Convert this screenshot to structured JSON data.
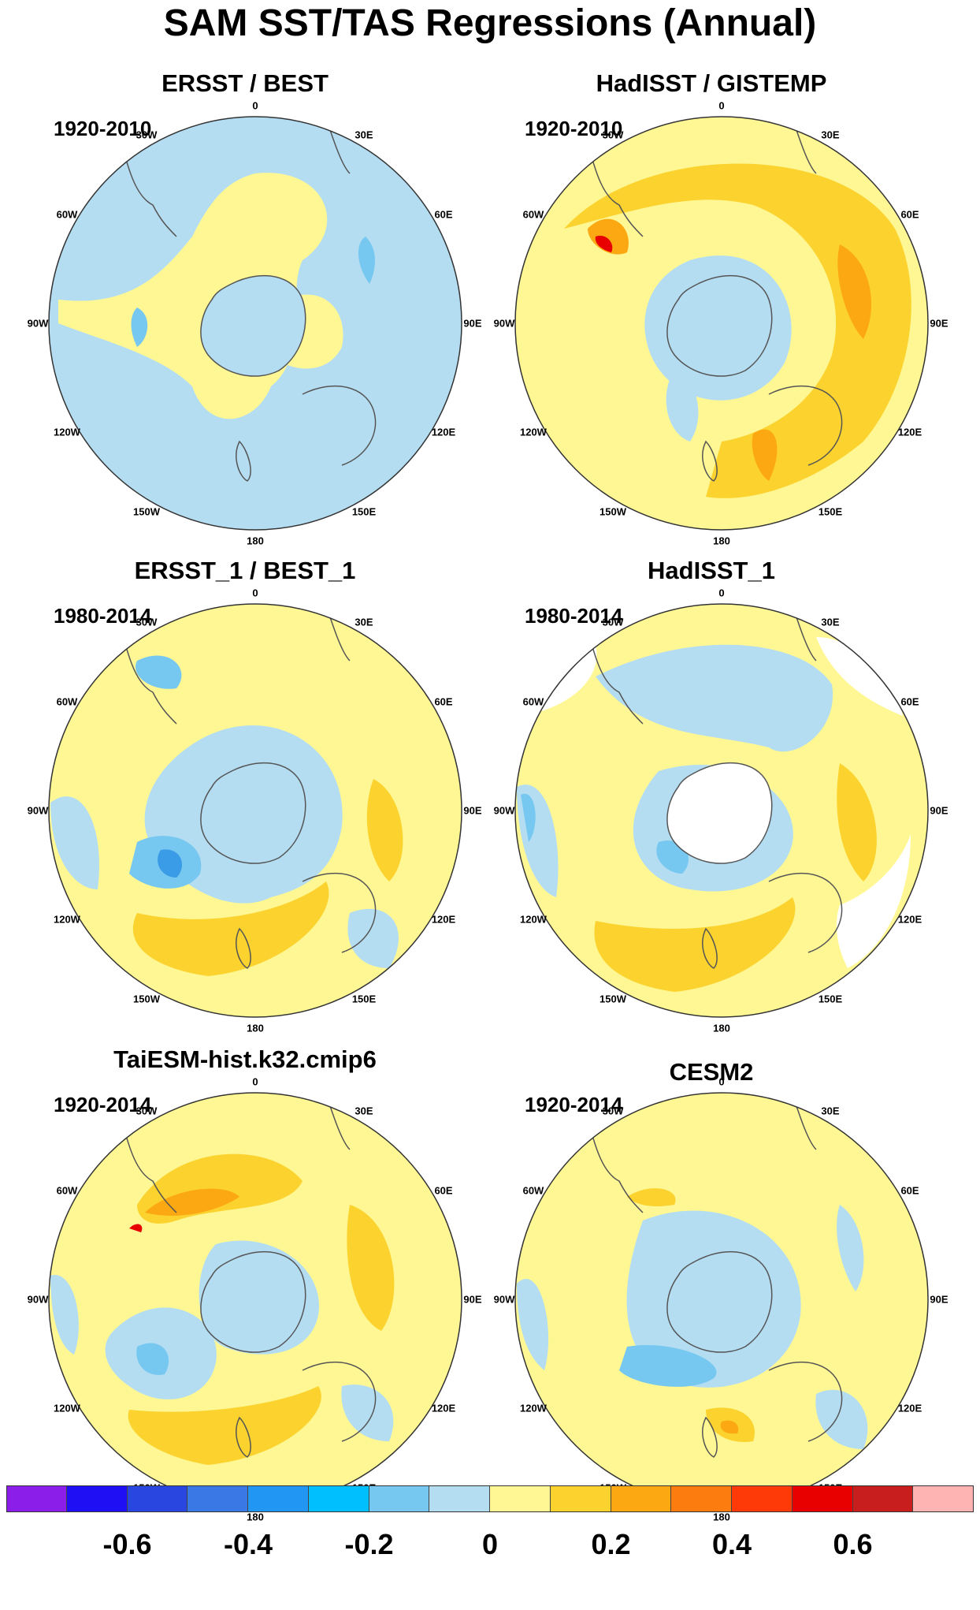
{
  "title": "SAM SST/TAS Regressions (Annual)",
  "panels": [
    {
      "name": "ERSST / BEST",
      "period": "1920-2010",
      "scheme": "A"
    },
    {
      "name": "HadISST / GISTEMP",
      "period": "1920-2010",
      "scheme": "B"
    },
    {
      "name": "ERSST_1 / BEST_1",
      "period": "1980-2014",
      "scheme": "C"
    },
    {
      "name": "HadISST_1",
      "period": "1980-2014",
      "scheme": "D"
    },
    {
      "name": "TaiESM-hist.k32.cmip6",
      "period": "1920-2014",
      "scheme": "E"
    },
    {
      "name": "CESM2",
      "period": "1920-2014",
      "scheme": "F"
    }
  ],
  "lon_labels": {
    "top": "0",
    "bottom": "180",
    "left": "90W",
    "right": "90E",
    "ul1": "30W",
    "ul2": "60W",
    "ll1": "120W",
    "ll2": "150W",
    "ur1": "30E",
    "ur2": "60E",
    "lr1": "120E",
    "lr2": "150E"
  },
  "colorbar": {
    "colors": [
      "#8b1ee8",
      "#1e0ff5",
      "#2a46e0",
      "#3a78e6",
      "#2196f3",
      "#00bfff",
      "#77c8f0",
      "#b4ddf2",
      "#fef794",
      "#fcd32e",
      "#fca813",
      "#fc7c10",
      "#fe3a09",
      "#e80000",
      "#c81e1e",
      "#ffb4b4"
    ],
    "labels": [
      {
        "text": "-0.6",
        "boundary": 2
      },
      {
        "text": "-0.4",
        "boundary": 4
      },
      {
        "text": "-0.2",
        "boundary": 6
      },
      {
        "text": "0",
        "boundary": 8
      },
      {
        "text": "0.2",
        "boundary": 10
      },
      {
        "text": "0.4",
        "boundary": 12
      },
      {
        "text": "0.6",
        "boundary": 14
      }
    ]
  }
}
